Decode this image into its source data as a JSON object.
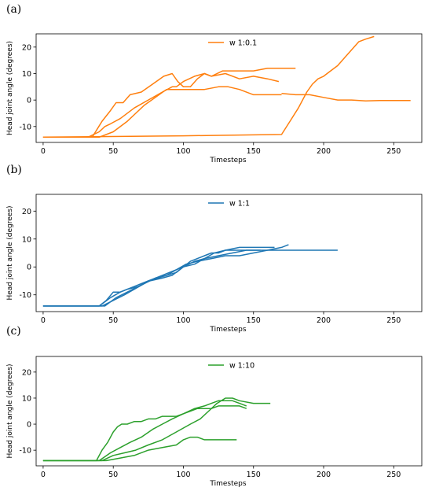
{
  "chart_data": [
    {
      "panel": "(a)",
      "type": "line",
      "xlabel": "Timesteps",
      "ylabel": "Head joint angle (degrees)",
      "xlim": [
        -5,
        270
      ],
      "ylim": [
        -16,
        25
      ],
      "xticks": [
        0,
        50,
        100,
        150,
        200,
        250
      ],
      "yticks": [
        -10,
        0,
        10,
        20
      ],
      "legend": "top-center",
      "color": "#ff7f0e",
      "series": [
        {
          "name": "w 1:0.1",
          "x": [
            0,
            32,
            40,
            44,
            48,
            55,
            65,
            75,
            85,
            92,
            95,
            100,
            108,
            115,
            120,
            128,
            135,
            142,
            150,
            160,
            170,
            175,
            180
          ],
          "y": [
            -14,
            -14,
            -12,
            -10,
            -9,
            -7,
            -3,
            0,
            3,
            5,
            5,
            7,
            9,
            10,
            9,
            11,
            11,
            11,
            11,
            12,
            12,
            12,
            12
          ]
        },
        {
          "x": [
            0,
            35,
            42,
            48,
            52,
            57,
            62,
            70,
            78,
            86,
            92,
            96,
            100,
            105,
            110,
            115,
            120,
            130,
            140,
            150,
            160,
            168
          ],
          "y": [
            -14,
            -14,
            -8,
            -4,
            -1,
            -1,
            2,
            3,
            6,
            9,
            10,
            7,
            5,
            5,
            8,
            10,
            9,
            10,
            8,
            9,
            8,
            7
          ]
        },
        {
          "x": [
            0,
            40,
            50,
            60,
            66,
            72,
            80,
            88,
            95,
            100,
            115,
            125,
            132,
            140,
            150,
            160,
            170
          ],
          "y": [
            -14,
            -14,
            -12,
            -8,
            -5,
            -2,
            1,
            4,
            4,
            4,
            4,
            5,
            5,
            4,
            2,
            2,
            2
          ]
        },
        {
          "x": [
            0,
            100,
            170,
            176,
            182,
            188,
            192,
            196,
            200,
            205,
            210,
            215,
            220,
            225,
            230,
            236
          ],
          "y": [
            -14,
            -13.5,
            -13,
            -8,
            -3,
            3,
            6,
            8,
            9,
            11,
            13,
            16,
            19,
            22,
            23,
            24
          ]
        },
        {
          "x": [
            170,
            180,
            190,
            200,
            210,
            220,
            230,
            240,
            250,
            262
          ],
          "y": [
            2.5,
            2,
            2,
            1,
            0,
            0,
            -0.3,
            -0.2,
            -0.2,
            -0.2
          ]
        }
      ]
    },
    {
      "panel": "(b)",
      "type": "line",
      "xlabel": "Timesteps",
      "ylabel": "Head joint angle (degrees)",
      "xlim": [
        -5,
        270
      ],
      "ylim": [
        -16,
        26
      ],
      "xticks": [
        0,
        50,
        100,
        150,
        200,
        250
      ],
      "yticks": [
        -10,
        0,
        10,
        20
      ],
      "legend": "top-center",
      "color": "#1f77b4",
      "series": [
        {
          "name": "w 1:1",
          "x": [
            0,
            40,
            45,
            50,
            55,
            60,
            65,
            70,
            75,
            80,
            85,
            90,
            95,
            100,
            105,
            110,
            115,
            120,
            125,
            130,
            140,
            150,
            160,
            170,
            175
          ],
          "y": [
            -14,
            -14,
            -12,
            -9,
            -9,
            -8,
            -7,
            -6,
            -5,
            -4,
            -3,
            -2,
            -1,
            0,
            2,
            3,
            4,
            5,
            5,
            6,
            6,
            6,
            6,
            7,
            8
          ]
        },
        {
          "x": [
            0,
            40,
            48,
            55,
            60,
            68,
            75,
            82,
            88,
            95,
            100,
            108,
            115,
            122,
            130,
            140,
            150,
            160,
            165
          ],
          "y": [
            -14,
            -14,
            -11,
            -9,
            -8,
            -7,
            -5,
            -4,
            -3,
            -2,
            0,
            1,
            3,
            5,
            6,
            7,
            7,
            7,
            7
          ]
        },
        {
          "x": [
            0,
            42,
            50,
            58,
            65,
            72,
            80,
            88,
            95,
            102,
            110,
            120,
            130,
            140,
            150,
            160,
            170,
            180,
            190,
            200,
            210
          ],
          "y": [
            -14,
            -14,
            -12,
            -10,
            -8,
            -6,
            -4,
            -3,
            -1,
            1,
            2,
            3,
            4,
            4,
            5,
            6,
            6,
            6,
            6,
            6,
            6
          ]
        },
        {
          "x": [
            0,
            44,
            52,
            60,
            68,
            76,
            85,
            92,
            100,
            108,
            115,
            125,
            135,
            145,
            155
          ],
          "y": [
            -14,
            -14,
            -11,
            -9,
            -7,
            -5,
            -4,
            -3,
            0,
            2,
            3,
            4,
            5,
            6,
            6
          ]
        }
      ]
    },
    {
      "panel": "(c)",
      "type": "line",
      "xlabel": "Timesteps",
      "ylabel": "Head joint angle (degrees)",
      "xlim": [
        -5,
        270
      ],
      "ylim": [
        -16,
        26
      ],
      "xticks": [
        0,
        50,
        100,
        150,
        200,
        250
      ],
      "yticks": [
        -10,
        0,
        10,
        20
      ],
      "legend": "top-center",
      "color": "#2ca02c",
      "series": [
        {
          "name": "w 1:10",
          "x": [
            0,
            38,
            42,
            46,
            50,
            53,
            56,
            60,
            65,
            70,
            75,
            80,
            85,
            90,
            95,
            100,
            105,
            110,
            115,
            120,
            125,
            130,
            135,
            140,
            145
          ],
          "y": [
            -14,
            -14,
            -10,
            -7,
            -3,
            -1,
            0,
            0,
            1,
            1,
            2,
            2,
            3,
            3,
            3,
            4,
            5,
            6,
            6,
            6,
            7,
            7,
            7,
            7,
            6
          ]
        },
        {
          "x": [
            0,
            40,
            48,
            55,
            62,
            70,
            78,
            85,
            92,
            100,
            108,
            115,
            120,
            125,
            130,
            135,
            140,
            145
          ],
          "y": [
            -14,
            -14,
            -11,
            -9,
            -7,
            -5,
            -2,
            0,
            2,
            4,
            6,
            7,
            8,
            9,
            9,
            9,
            8,
            7
          ]
        },
        {
          "x": [
            0,
            42,
            50,
            58,
            66,
            75,
            85,
            95,
            105,
            112,
            118,
            124,
            130,
            135,
            140,
            150,
            162
          ],
          "y": [
            -14,
            -14,
            -12,
            -11,
            -10,
            -8,
            -6,
            -3,
            0,
            2,
            5,
            8,
            10,
            10,
            9,
            8,
            8
          ]
        },
        {
          "x": [
            0,
            45,
            55,
            65,
            75,
            85,
            95,
            100,
            105,
            110,
            115,
            125,
            130,
            138
          ],
          "y": [
            -14,
            -14,
            -13,
            -12,
            -10,
            -9,
            -8,
            -6,
            -5,
            -5,
            -6,
            -6,
            -6,
            -6
          ]
        }
      ]
    }
  ]
}
